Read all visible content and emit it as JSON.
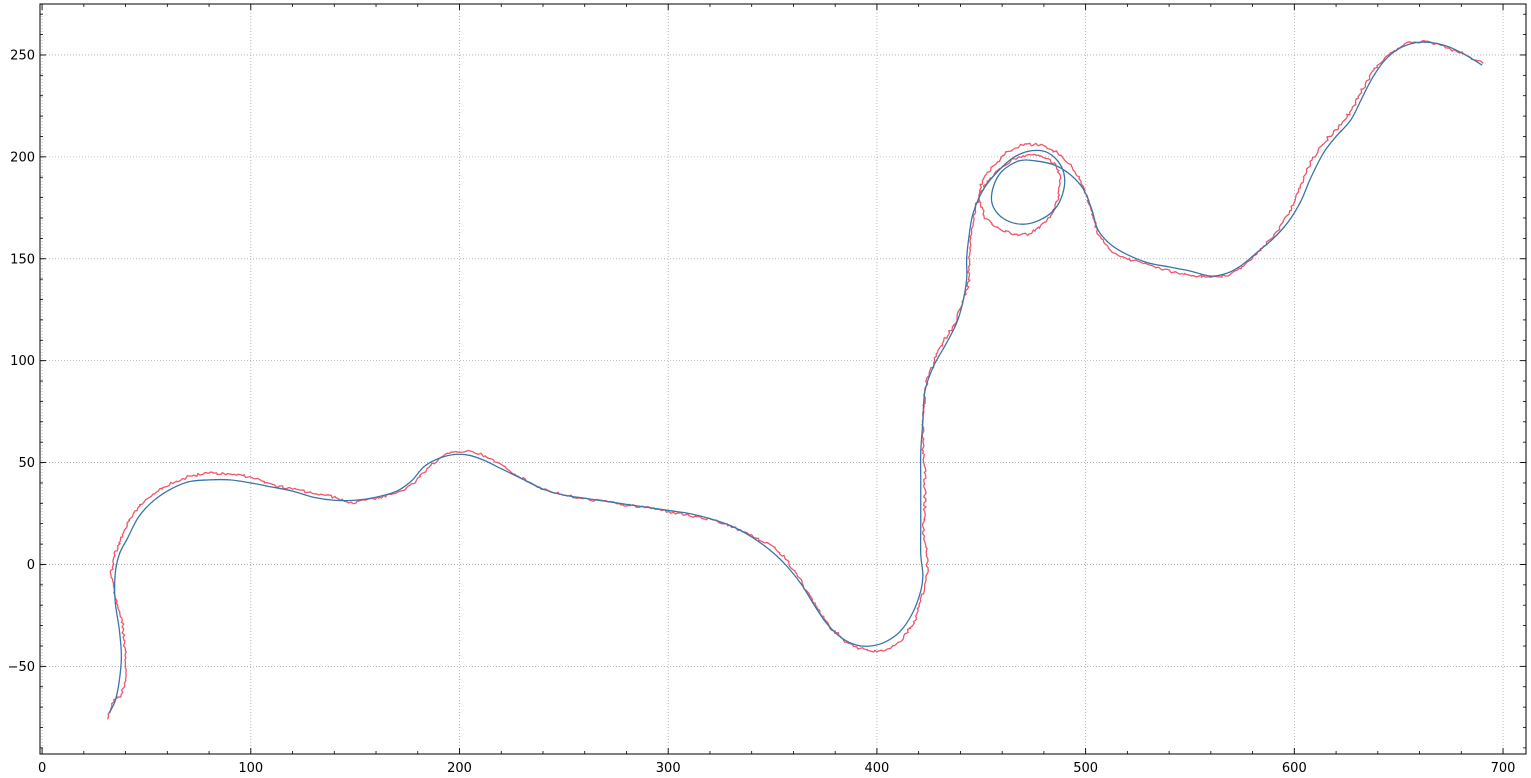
{
  "chart_data": {
    "type": "line",
    "title": "",
    "xlabel": "",
    "ylabel": "",
    "xlim": [
      -1,
      711
    ],
    "ylim": [
      -93,
      275
    ],
    "grid": true,
    "grid_style": "dotted",
    "x_ticks": [
      0,
      100,
      200,
      300,
      400,
      500,
      600,
      700
    ],
    "y_ticks": [
      -50,
      0,
      50,
      100,
      150,
      200,
      250
    ],
    "x_tick_labels": [
      "0",
      "100",
      "200",
      "300",
      "400",
      "500",
      "600",
      "700"
    ],
    "y_tick_labels": [
      "−50",
      "0",
      "50",
      "100",
      "150",
      "200",
      "250"
    ],
    "series": [
      {
        "color": "#f0556a",
        "noisy": true,
        "points": [
          [
            31,
            -76
          ],
          [
            34,
            -67
          ],
          [
            38,
            -64
          ],
          [
            40,
            -56
          ],
          [
            40,
            -43
          ],
          [
            38,
            -25
          ],
          [
            35,
            -16
          ],
          [
            33,
            -4
          ],
          [
            35,
            5
          ],
          [
            38,
            13
          ],
          [
            41,
            20
          ],
          [
            45,
            27
          ],
          [
            52,
            34
          ],
          [
            60,
            39
          ],
          [
            70,
            43
          ],
          [
            80,
            45
          ],
          [
            90,
            44.5
          ],
          [
            100,
            43
          ],
          [
            110,
            39
          ],
          [
            120,
            37
          ],
          [
            130,
            35
          ],
          [
            140,
            33
          ],
          [
            148,
            30
          ],
          [
            155,
            32
          ],
          [
            163,
            33
          ],
          [
            170,
            35
          ],
          [
            177,
            39
          ],
          [
            183,
            45
          ],
          [
            188,
            50
          ],
          [
            193,
            54
          ],
          [
            200,
            55.5
          ],
          [
            207,
            55.5
          ],
          [
            212,
            53
          ],
          [
            220,
            49
          ],
          [
            230,
            42
          ],
          [
            240,
            37
          ],
          [
            250,
            34
          ],
          [
            260,
            32
          ],
          [
            270,
            31
          ],
          [
            280,
            29
          ],
          [
            290,
            28
          ],
          [
            300,
            26
          ],
          [
            310,
            24
          ],
          [
            320,
            22
          ],
          [
            330,
            19
          ],
          [
            340,
            14
          ],
          [
            350,
            9
          ],
          [
            356,
            3
          ],
          [
            362,
            -5
          ],
          [
            367,
            -14
          ],
          [
            372,
            -23
          ],
          [
            378,
            -31
          ],
          [
            384,
            -37
          ],
          [
            391,
            -41
          ],
          [
            398,
            -42.5
          ],
          [
            405,
            -42
          ],
          [
            412,
            -37
          ],
          [
            418,
            -28
          ],
          [
            422,
            -15
          ],
          [
            424,
            -5
          ],
          [
            424,
            5
          ],
          [
            422,
            15
          ],
          [
            423,
            30
          ],
          [
            423,
            45
          ],
          [
            422,
            60
          ],
          [
            422,
            75
          ],
          [
            424,
            90
          ],
          [
            430,
            106
          ],
          [
            437,
            118
          ],
          [
            441,
            128
          ],
          [
            444,
            138
          ],
          [
            444,
            150
          ],
          [
            445,
            162
          ],
          [
            447,
            175
          ],
          [
            451,
            185
          ],
          [
            456,
            192
          ],
          [
            464,
            198
          ],
          [
            472,
            201
          ],
          [
            480,
            200
          ],
          [
            486,
            196
          ],
          [
            488,
            188
          ],
          [
            487,
            180
          ],
          [
            484,
            172
          ],
          [
            479,
            166
          ],
          [
            472,
            162
          ],
          [
            465,
            162
          ],
          [
            458,
            165
          ],
          [
            452,
            170
          ],
          [
            449,
            178
          ],
          [
            450,
            187
          ],
          [
            455,
            195
          ],
          [
            462,
            202
          ],
          [
            470,
            206
          ],
          [
            478,
            206
          ],
          [
            485,
            203
          ],
          [
            492,
            197
          ],
          [
            497,
            190
          ],
          [
            500,
            182
          ],
          [
            503,
            173
          ],
          [
            506,
            162
          ],
          [
            512,
            154
          ],
          [
            520,
            150
          ],
          [
            530,
            147
          ],
          [
            540,
            144
          ],
          [
            550,
            142
          ],
          [
            560,
            141
          ],
          [
            568,
            142
          ],
          [
            575,
            146
          ],
          [
            582,
            152
          ],
          [
            590,
            161
          ],
          [
            597,
            172
          ],
          [
            603,
            185
          ],
          [
            608,
            198
          ],
          [
            614,
            207
          ],
          [
            620,
            213
          ],
          [
            627,
            222
          ],
          [
            632,
            232
          ],
          [
            638,
            243
          ],
          [
            646,
            251
          ],
          [
            655,
            256
          ],
          [
            663,
            256.5
          ],
          [
            672,
            254
          ],
          [
            680,
            251
          ],
          [
            686,
            248
          ],
          [
            690,
            246
          ]
        ]
      },
      {
        "color": "#3a75a8",
        "noisy": false,
        "points": [
          [
            32,
            -73
          ],
          [
            35,
            -67
          ],
          [
            37,
            -57
          ],
          [
            38,
            -45
          ],
          [
            37,
            -32
          ],
          [
            35,
            -18
          ],
          [
            35,
            -5
          ],
          [
            37,
            5
          ],
          [
            41,
            13
          ],
          [
            46,
            23
          ],
          [
            52,
            30
          ],
          [
            60,
            36
          ],
          [
            70,
            40.5
          ],
          [
            80,
            41.5
          ],
          [
            90,
            41.5
          ],
          [
            100,
            40
          ],
          [
            110,
            38
          ],
          [
            120,
            36
          ],
          [
            130,
            33
          ],
          [
            140,
            31.5
          ],
          [
            150,
            31.5
          ],
          [
            160,
            33
          ],
          [
            170,
            36
          ],
          [
            177,
            41
          ],
          [
            183,
            48
          ],
          [
            190,
            52
          ],
          [
            198,
            54
          ],
          [
            205,
            53.5
          ],
          [
            212,
            51
          ],
          [
            220,
            47
          ],
          [
            230,
            42
          ],
          [
            240,
            37
          ],
          [
            250,
            34
          ],
          [
            260,
            32.5
          ],
          [
            270,
            31
          ],
          [
            280,
            29.5
          ],
          [
            290,
            28
          ],
          [
            300,
            26.5
          ],
          [
            310,
            25
          ],
          [
            320,
            22.5
          ],
          [
            330,
            19
          ],
          [
            340,
            13.5
          ],
          [
            350,
            6
          ],
          [
            357,
            -1
          ],
          [
            364,
            -10
          ],
          [
            370,
            -20
          ],
          [
            376,
            -29
          ],
          [
            383,
            -36
          ],
          [
            390,
            -39.5
          ],
          [
            397,
            -40
          ],
          [
            404,
            -38
          ],
          [
            411,
            -33
          ],
          [
            417,
            -24
          ],
          [
            421,
            -13
          ],
          [
            422,
            -5
          ],
          [
            421,
            5
          ],
          [
            421,
            20
          ],
          [
            421,
            40
          ],
          [
            421,
            55
          ],
          [
            422,
            70
          ],
          [
            423,
            85
          ],
          [
            427,
            97
          ],
          [
            433,
            108
          ],
          [
            438,
            118
          ],
          [
            441,
            128
          ],
          [
            443,
            140
          ],
          [
            443,
            150
          ],
          [
            444,
            160
          ],
          [
            446,
            172
          ],
          [
            451,
            184
          ],
          [
            458,
            193
          ],
          [
            466,
            200
          ],
          [
            474,
            203
          ],
          [
            482,
            202
          ],
          [
            488,
            196
          ],
          [
            490,
            188
          ],
          [
            488,
            179
          ],
          [
            484,
            173
          ],
          [
            478,
            169
          ],
          [
            471,
            167
          ],
          [
            464,
            168
          ],
          [
            458,
            172
          ],
          [
            455,
            178
          ],
          [
            456,
            186
          ],
          [
            460,
            193
          ],
          [
            468,
            198
          ],
          [
            476,
            198
          ],
          [
            485,
            196
          ],
          [
            493,
            191
          ],
          [
            499,
            184
          ],
          [
            503,
            174
          ],
          [
            506,
            164
          ],
          [
            512,
            157
          ],
          [
            520,
            152
          ],
          [
            530,
            148
          ],
          [
            540,
            146
          ],
          [
            550,
            144
          ],
          [
            560,
            141.5
          ],
          [
            568,
            143
          ],
          [
            575,
            147
          ],
          [
            582,
            153
          ],
          [
            590,
            160
          ],
          [
            597,
            168
          ],
          [
            603,
            178
          ],
          [
            608,
            190
          ],
          [
            614,
            202
          ],
          [
            620,
            210
          ],
          [
            627,
            218
          ],
          [
            632,
            228
          ],
          [
            637,
            238
          ],
          [
            643,
            247
          ],
          [
            650,
            253
          ],
          [
            658,
            256
          ],
          [
            666,
            256
          ],
          [
            674,
            254
          ],
          [
            682,
            250
          ],
          [
            690,
            245
          ]
        ]
      }
    ]
  }
}
